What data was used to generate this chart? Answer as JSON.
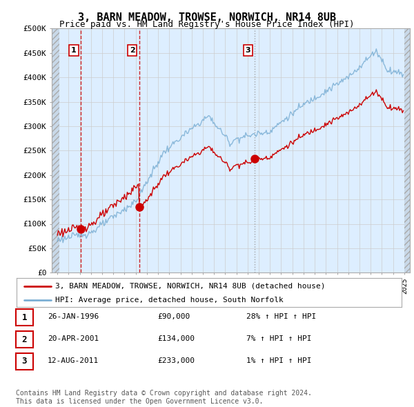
{
  "title": "3, BARN MEADOW, TROWSE, NORWICH, NR14 8UB",
  "subtitle": "Price paid vs. HM Land Registry's House Price Index (HPI)",
  "ylim": [
    0,
    500000
  ],
  "yticks": [
    0,
    50000,
    100000,
    150000,
    200000,
    250000,
    300000,
    350000,
    400000,
    450000,
    500000
  ],
  "ytick_labels": [
    "£0",
    "£50K",
    "£100K",
    "£150K",
    "£200K",
    "£250K",
    "£300K",
    "£350K",
    "£400K",
    "£450K",
    "£500K"
  ],
  "sale_color": "#cc0000",
  "hpi_color": "#7bafd4",
  "vline_sale1_color": "#cc0000",
  "vline_sale2_color": "#cc0000",
  "vline_sale3_color": "#999999",
  "grid_color": "#cccccc",
  "plot_bg_color": "#ddeeff",
  "hatch_color": "#c8d8e8",
  "legend_label_sale": "3, BARN MEADOW, TROWSE, NORWICH, NR14 8UB (detached house)",
  "legend_label_hpi": "HPI: Average price, detached house, South Norfolk",
  "transactions": [
    {
      "num": 1,
      "date_label": "26-JAN-1996",
      "price": 90000,
      "pct": "28%",
      "x": 1996.07
    },
    {
      "num": 2,
      "date_label": "20-APR-2001",
      "price": 134000,
      "pct": "7%",
      "x": 2001.3
    },
    {
      "num": 3,
      "date_label": "12-AUG-2011",
      "price": 233000,
      "pct": "1%",
      "x": 2011.62
    }
  ],
  "table_rows": [
    [
      "1",
      "26-JAN-1996",
      "£90,000",
      "28% ↑ HPI"
    ],
    [
      "2",
      "20-APR-2001",
      "£134,000",
      "7% ↑ HPI"
    ],
    [
      "3",
      "12-AUG-2011",
      "£233,000",
      "1% ↑ HPI"
    ]
  ],
  "footer": "Contains HM Land Registry data © Crown copyright and database right 2024.\nThis data is licensed under the Open Government Licence v3.0.",
  "title_fontsize": 11,
  "subtitle_fontsize": 9,
  "tick_fontsize": 8,
  "legend_fontsize": 8,
  "table_fontsize": 8,
  "footer_fontsize": 7
}
